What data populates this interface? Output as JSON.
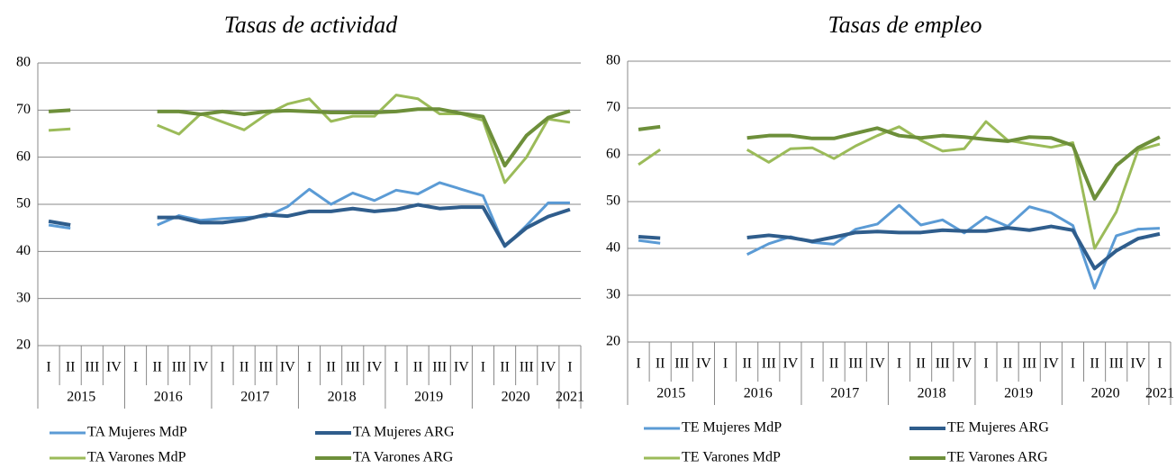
{
  "chart_data": [
    {
      "type": "line",
      "title": "Tasas de actividad",
      "categories": [
        "I",
        "II",
        "III",
        "IV",
        "I",
        "II",
        "III",
        "IV",
        "I",
        "II",
        "III",
        "IV",
        "I",
        "II",
        "III",
        "IV",
        "I",
        "II",
        "III",
        "IV",
        "I",
        "II",
        "III",
        "IV",
        "I"
      ],
      "x_groups": [
        "2015",
        "2016",
        "2017",
        "2018",
        "2019",
        "2020",
        "2021"
      ],
      "ylim": [
        20,
        80
      ],
      "yticks": [
        20,
        30,
        40,
        50,
        60,
        70,
        80
      ],
      "grid": true,
      "series": [
        {
          "name": "TA Mujeres MdP",
          "color": "#5b9bd5",
          "values": [
            45.6,
            44.9,
            null,
            null,
            null,
            45.6,
            47.6,
            46.6,
            47.0,
            47.2,
            47.4,
            49.5,
            53.2,
            50.0,
            52.4,
            50.8,
            53.0,
            52.2,
            54.6,
            53.2,
            51.8,
            41.0,
            45.5,
            50.3,
            50.3
          ]
        },
        {
          "name": "TA Mujeres ARG",
          "color": "#2f5d8c",
          "values": [
            46.4,
            45.6,
            null,
            null,
            null,
            47.2,
            47.2,
            46.1,
            46.1,
            46.7,
            47.8,
            47.5,
            48.5,
            48.5,
            49.1,
            48.5,
            48.9,
            49.9,
            49.1,
            49.4,
            49.4,
            41.2,
            45.0,
            47.4,
            48.9
          ]
        },
        {
          "name": "TA Varones MdP",
          "color": "#9bbb59",
          "values": [
            65.7,
            66.0,
            null,
            null,
            null,
            66.8,
            64.9,
            69.2,
            67.5,
            65.8,
            69.0,
            71.3,
            72.4,
            67.6,
            68.7,
            68.7,
            73.2,
            72.4,
            69.2,
            69.2,
            67.8,
            54.6,
            60.0,
            68.1,
            67.4
          ]
        },
        {
          "name": "TA Varones ARG",
          "color": "#6d8f3a",
          "values": [
            69.7,
            70.0,
            null,
            null,
            null,
            69.7,
            69.7,
            69.1,
            69.7,
            69.1,
            69.7,
            69.9,
            69.7,
            69.5,
            69.5,
            69.5,
            69.7,
            70.2,
            70.2,
            69.3,
            68.6,
            58.2,
            64.6,
            68.4,
            69.8
          ]
        }
      ]
    },
    {
      "type": "line",
      "title": "Tasas de empleo",
      "categories": [
        "I",
        "II",
        "III",
        "IV",
        "I",
        "II",
        "III",
        "IV",
        "I",
        "II",
        "III",
        "IV",
        "I",
        "II",
        "III",
        "IV",
        "I",
        "II",
        "III",
        "IV",
        "I",
        "II",
        "III",
        "IV",
        "I"
      ],
      "x_groups": [
        "2015",
        "2016",
        "2017",
        "2018",
        "2019",
        "2020",
        "2021"
      ],
      "ylim": [
        20,
        80
      ],
      "yticks": [
        20,
        30,
        40,
        50,
        60,
        70,
        80
      ],
      "grid": true,
      "series": [
        {
          "name": "TE Mujeres MdP",
          "color": "#5b9bd5",
          "values": [
            41.7,
            41.1,
            null,
            null,
            null,
            38.7,
            41.0,
            42.5,
            41.3,
            40.9,
            44.1,
            45.2,
            49.2,
            45.0,
            46.1,
            43.3,
            46.7,
            44.7,
            48.9,
            47.6,
            44.9,
            31.5,
            42.7,
            44.1,
            44.3
          ]
        },
        {
          "name": "TE Mujeres ARG",
          "color": "#2f5d8c",
          "values": [
            42.5,
            42.2,
            null,
            null,
            null,
            42.3,
            42.8,
            42.3,
            41.5,
            42.4,
            43.4,
            43.6,
            43.4,
            43.4,
            43.9,
            43.7,
            43.7,
            44.4,
            43.9,
            44.7,
            43.9,
            35.7,
            39.5,
            42.1,
            43.1
          ]
        },
        {
          "name": "TE Varones MdP",
          "color": "#9bbb59",
          "values": [
            57.9,
            61.1,
            null,
            null,
            null,
            61.1,
            58.4,
            61.3,
            61.5,
            59.2,
            61.9,
            64.1,
            66.0,
            63.1,
            60.8,
            61.3,
            67.1,
            63.1,
            62.3,
            61.6,
            62.6,
            40.0,
            47.8,
            61.0,
            62.3
          ]
        },
        {
          "name": "TE Varones ARG",
          "color": "#6d8f3a",
          "values": [
            65.4,
            66.0,
            null,
            null,
            null,
            63.6,
            64.1,
            64.1,
            63.5,
            63.5,
            64.6,
            65.7,
            64.1,
            63.6,
            64.1,
            63.8,
            63.3,
            62.9,
            63.8,
            63.6,
            62.0,
            50.6,
            57.7,
            61.5,
            63.8
          ]
        }
      ]
    }
  ]
}
